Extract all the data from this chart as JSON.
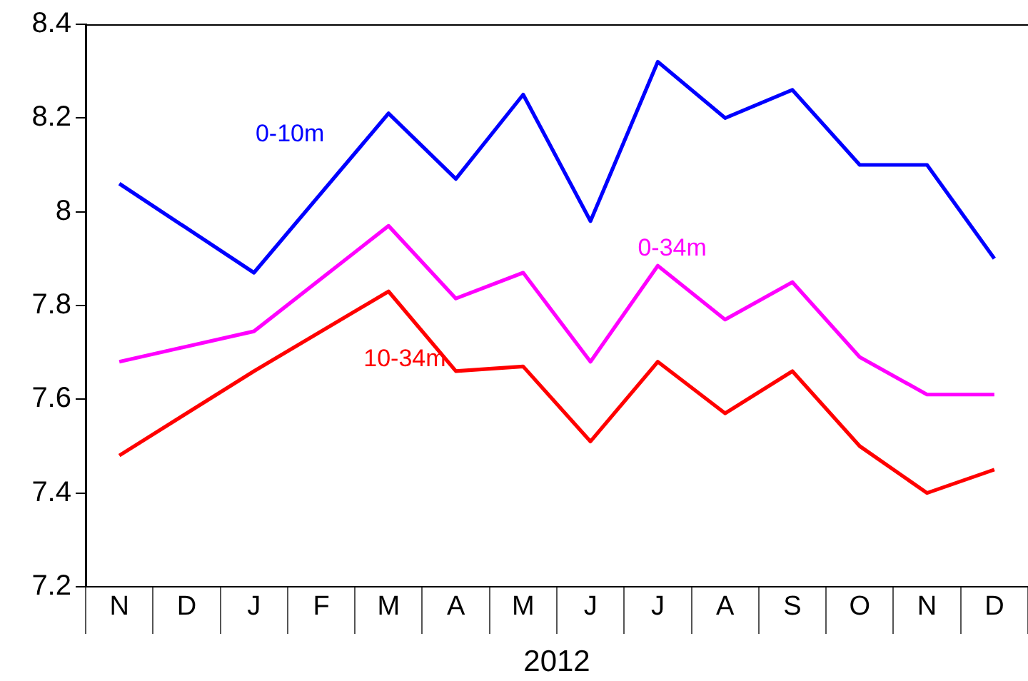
{
  "chart_data": {
    "type": "line",
    "xlabel": "2012",
    "categories": [
      "N",
      "D",
      "J",
      "F",
      "M",
      "A",
      "M",
      "J",
      "J",
      "A",
      "S",
      "O",
      "N",
      "D"
    ],
    "series": [
      {
        "name": "0-10m",
        "color": "#0000ff",
        "values": [
          8.06,
          null,
          7.87,
          null,
          8.21,
          8.07,
          8.25,
          7.98,
          8.32,
          8.2,
          8.26,
          8.1,
          8.1,
          7.9
        ]
      },
      {
        "name": "0-34m",
        "color": "#ff00ff",
        "values": [
          7.68,
          null,
          7.745,
          null,
          7.97,
          7.815,
          7.87,
          7.68,
          7.885,
          7.77,
          7.85,
          7.69,
          7.61,
          7.61
        ]
      },
      {
        "name": "10-34m",
        "color": "#ff0000",
        "values": [
          7.48,
          null,
          7.66,
          null,
          7.83,
          7.66,
          7.67,
          7.51,
          7.68,
          7.57,
          7.66,
          7.5,
          7.4,
          7.45
        ]
      }
    ],
    "ylim": [
      7.2,
      8.4
    ],
    "yticks": [
      7.2,
      7.4,
      7.6,
      7.8,
      8,
      8.2,
      8.4
    ],
    "grid": false,
    "legend": false,
    "marker": "none",
    "line_style": "solid"
  }
}
